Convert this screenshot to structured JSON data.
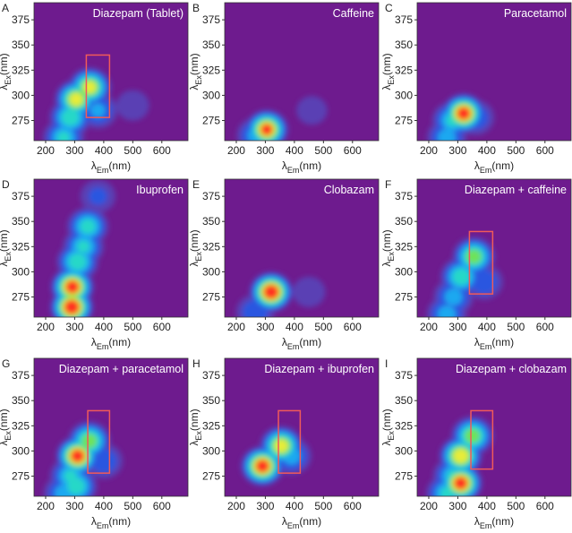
{
  "chart_data": [
    {
      "type": "contour",
      "panel_label": "A",
      "title": "Diazepam (Tablet)",
      "xlabel": {
        "symbol": "λ",
        "sub": "Em",
        "unit": "(nm)"
      },
      "ylabel": {
        "symbol": "λ",
        "sub": "Ex",
        "unit": "(nm)"
      },
      "xlim": [
        160,
        690
      ],
      "ylim": [
        255,
        392
      ],
      "xticks": [
        200,
        300,
        400,
        500,
        600
      ],
      "yticks": [
        275,
        300,
        325,
        350,
        375
      ],
      "background": "#6e1b8e",
      "peaks": {
        "em": [
          262,
          285,
          305,
          352,
          380,
          500
        ],
        "ex": [
          258,
          278,
          296,
          308,
          285,
          290
        ],
        "z": [
          0.5,
          0.6,
          0.8,
          0.78,
          0.35,
          0.15
        ]
      },
      "highlight": {
        "em": [
          340,
          420
        ],
        "ex": [
          278,
          340
        ],
        "color": "#f05a5a"
      }
    },
    {
      "type": "contour",
      "panel_label": "B",
      "title": "Caffeine",
      "xlabel": {
        "symbol": "λ",
        "sub": "Em",
        "unit": "(nm)"
      },
      "ylabel": {
        "symbol": "λ",
        "sub": "Ex",
        "unit": "(nm)"
      },
      "xlim": [
        160,
        690
      ],
      "ylim": [
        255,
        392
      ],
      "xticks": [
        200,
        300,
        400,
        500,
        600
      ],
      "yticks": [
        275,
        300,
        325,
        350,
        375
      ],
      "background": "#6e1b8e",
      "peaks": {
        "em": [
          270,
          305,
          460
        ],
        "ex": [
          260,
          266,
          285
        ],
        "z": [
          0.4,
          0.9,
          0.12
        ]
      }
    },
    {
      "type": "contour",
      "panel_label": "C",
      "title": "Paracetamol",
      "xlabel": {
        "symbol": "λ",
        "sub": "Em",
        "unit": "(nm)"
      },
      "ylabel": {
        "symbol": "λ",
        "sub": "Ex",
        "unit": "(nm)"
      },
      "xlim": [
        160,
        690
      ],
      "ylim": [
        255,
        392
      ],
      "xticks": [
        200,
        300,
        400,
        500,
        600
      ],
      "yticks": [
        275,
        300,
        325,
        350,
        375
      ],
      "background": "#6e1b8e",
      "peaks": {
        "em": [
          262,
          282,
          320,
          360
        ],
        "ex": [
          258,
          275,
          282,
          278
        ],
        "z": [
          0.4,
          0.5,
          0.95,
          0.3
        ]
      }
    },
    {
      "type": "contour",
      "panel_label": "D",
      "title": "Ibuprofen",
      "xlabel": {
        "symbol": "λ",
        "sub": "Em",
        "unit": "(nm)"
      },
      "ylabel": {
        "symbol": "λ",
        "sub": "Ex",
        "unit": "(nm)"
      },
      "xlim": [
        160,
        690
      ],
      "ylim": [
        255,
        392
      ],
      "xticks": [
        200,
        300,
        400,
        500,
        600
      ],
      "yticks": [
        275,
        300,
        325,
        350,
        375
      ],
      "background": "#6e1b8e",
      "peaks": {
        "em": [
          290,
          292,
          310,
          330,
          345,
          380
        ],
        "ex": [
          265,
          285,
          310,
          325,
          345,
          375
        ],
        "z": [
          1.0,
          0.95,
          0.6,
          0.5,
          0.55,
          0.2
        ]
      }
    },
    {
      "type": "contour",
      "panel_label": "E",
      "title": "Clobazam",
      "xlabel": {
        "symbol": "λ",
        "sub": "Em",
        "unit": "(nm)"
      },
      "ylabel": {
        "symbol": "λ",
        "sub": "Ex",
        "unit": "(nm)"
      },
      "xlim": [
        160,
        690
      ],
      "ylim": [
        255,
        392
      ],
      "xticks": [
        200,
        300,
        400,
        500,
        600
      ],
      "yticks": [
        275,
        300,
        325,
        350,
        375
      ],
      "background": "#6e1b8e",
      "peaks": {
        "em": [
          265,
          320,
          450
        ],
        "ex": [
          260,
          280,
          280
        ],
        "z": [
          0.3,
          1.0,
          0.15
        ]
      }
    },
    {
      "type": "contour",
      "panel_label": "F",
      "title": "Diazepam + caffeine",
      "xlabel": {
        "symbol": "λ",
        "sub": "Em",
        "unit": "(nm)"
      },
      "ylabel": {
        "symbol": "λ",
        "sub": "Ex",
        "unit": "(nm)"
      },
      "xlim": [
        160,
        690
      ],
      "ylim": [
        255,
        392
      ],
      "xticks": [
        200,
        300,
        400,
        500,
        600
      ],
      "yticks": [
        275,
        300,
        325,
        350,
        375
      ],
      "background": "#6e1b8e",
      "peaks": {
        "em": [
          262,
          285,
          312,
          355,
          390
        ],
        "ex": [
          258,
          275,
          295,
          315,
          290
        ],
        "z": [
          0.4,
          0.4,
          0.6,
          0.7,
          0.3
        ]
      },
      "highlight": {
        "em": [
          340,
          420
        ],
        "ex": [
          278,
          340
        ],
        "color": "#f05a5a"
      }
    },
    {
      "type": "contour",
      "panel_label": "G",
      "title": "Diazepam + paracetamol",
      "xlabel": {
        "symbol": "λ",
        "sub": "Em",
        "unit": "(nm)"
      },
      "ylabel": {
        "symbol": "λ",
        "sub": "Ex",
        "unit": "(nm)"
      },
      "xlim": [
        160,
        690
      ],
      "ylim": [
        255,
        392
      ],
      "xticks": [
        200,
        300,
        400,
        500,
        600
      ],
      "yticks": [
        275,
        300,
        325,
        350,
        375
      ],
      "background": "#6e1b8e",
      "peaks": {
        "em": [
          262,
          285,
          305,
          310,
          350,
          400
        ],
        "ex": [
          258,
          275,
          265,
          295,
          310,
          290
        ],
        "z": [
          0.4,
          0.5,
          0.6,
          0.95,
          0.7,
          0.3
        ]
      },
      "highlight": {
        "em": [
          345,
          420
        ],
        "ex": [
          278,
          340
        ],
        "color": "#f05a5a"
      }
    },
    {
      "type": "contour",
      "panel_label": "H",
      "title": "Diazepam + ibuprofen",
      "xlabel": {
        "symbol": "λ",
        "sub": "Em",
        "unit": "(nm)"
      },
      "ylabel": {
        "symbol": "λ",
        "sub": "Ex",
        "unit": "(nm)"
      },
      "xlim": [
        160,
        690
      ],
      "ylim": [
        255,
        392
      ],
      "xticks": [
        200,
        300,
        400,
        500,
        600
      ],
      "yticks": [
        275,
        300,
        325,
        350,
        375
      ],
      "background": "#6e1b8e",
      "peaks": {
        "em": [
          290,
          355,
          390
        ],
        "ex": [
          285,
          305,
          295
        ],
        "z": [
          0.95,
          0.8,
          0.4
        ]
      },
      "highlight": {
        "em": [
          345,
          420
        ],
        "ex": [
          278,
          340
        ],
        "color": "#f05a5a"
      }
    },
    {
      "type": "contour",
      "panel_label": "I",
      "title": "Diazepam + clobazam",
      "xlabel": {
        "symbol": "λ",
        "sub": "Em",
        "unit": "(nm)"
      },
      "ylabel": {
        "symbol": "λ",
        "sub": "Ex",
        "unit": "(nm)"
      },
      "xlim": [
        160,
        690
      ],
      "ylim": [
        255,
        392
      ],
      "xticks": [
        200,
        300,
        400,
        500,
        600
      ],
      "yticks": [
        275,
        300,
        325,
        350,
        375
      ],
      "background": "#6e1b8e",
      "peaks": {
        "em": [
          262,
          285,
          310,
          310,
          350
        ],
        "ex": [
          258,
          275,
          268,
          295,
          315
        ],
        "z": [
          0.5,
          0.5,
          0.95,
          0.85,
          0.7
        ]
      },
      "highlight": {
        "em": [
          345,
          420
        ],
        "ex": [
          282,
          340
        ],
        "color": "#f05a5a"
      }
    }
  ]
}
